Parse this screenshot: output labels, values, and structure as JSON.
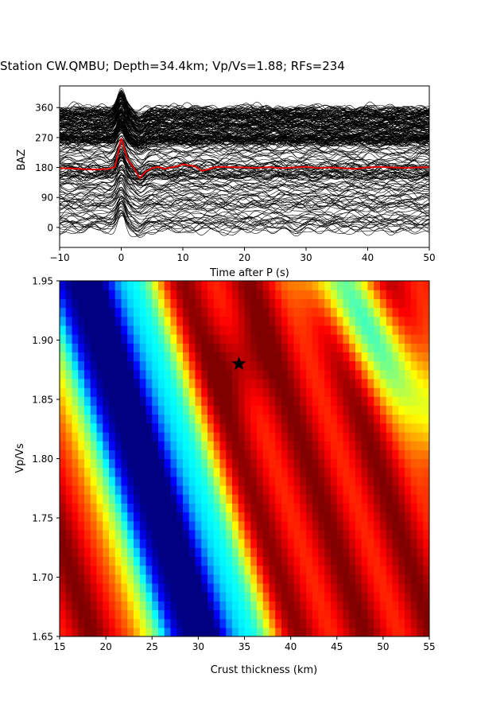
{
  "figure": {
    "title": "Station CW.QMBU; Depth=34.4km; Vp/Vs=1.88; RFs=234"
  },
  "chart_data": [
    {
      "type": "line",
      "panel": "top",
      "xlabel": "Time after P (s)",
      "ylabel": "BAZ",
      "xlim": [
        -10,
        50
      ],
      "ylim": [
        -60,
        425
      ],
      "xticks": [
        -10,
        0,
        10,
        20,
        30,
        40,
        50
      ],
      "yticks": [
        0,
        90,
        180,
        270,
        360
      ],
      "grid": false,
      "trace_count": 234,
      "trace_color": "#000000",
      "series": [
        {
          "color": "#e60000",
          "x": [
            -10,
            -8,
            -6,
            -4,
            -2,
            -1,
            0,
            1,
            2,
            3,
            4,
            5,
            6,
            7,
            8,
            9,
            10,
            11,
            12,
            13,
            14,
            15,
            16,
            18,
            20,
            22,
            24,
            26,
            28,
            30,
            32,
            34,
            36,
            38,
            40,
            42,
            44,
            46,
            48,
            50
          ],
          "values": [
            178,
            177,
            175,
            174,
            176,
            182,
            268,
            205,
            180,
            148,
            168,
            178,
            182,
            176,
            180,
            183,
            190,
            186,
            184,
            170,
            174,
            180,
            182,
            181,
            180,
            179,
            181,
            178,
            180,
            182,
            179,
            180,
            178,
            176,
            180,
            182,
            180,
            179,
            180,
            181
          ]
        }
      ]
    },
    {
      "type": "heatmap",
      "panel": "bottom",
      "xlabel": "Crust thickness (km)",
      "ylabel": "Vp/Vs",
      "xlim": [
        15,
        55
      ],
      "ylim": [
        1.65,
        1.95
      ],
      "xticks": [
        15,
        20,
        25,
        30,
        35,
        40,
        45,
        50,
        55
      ],
      "yticks": [
        1.65,
        1.7,
        1.75,
        1.8,
        1.85,
        1.9,
        1.95
      ],
      "colormap": "jet",
      "best_fit": {
        "thickness_km": 34.4,
        "vp_vs": 1.88,
        "marker": "star"
      }
    }
  ]
}
